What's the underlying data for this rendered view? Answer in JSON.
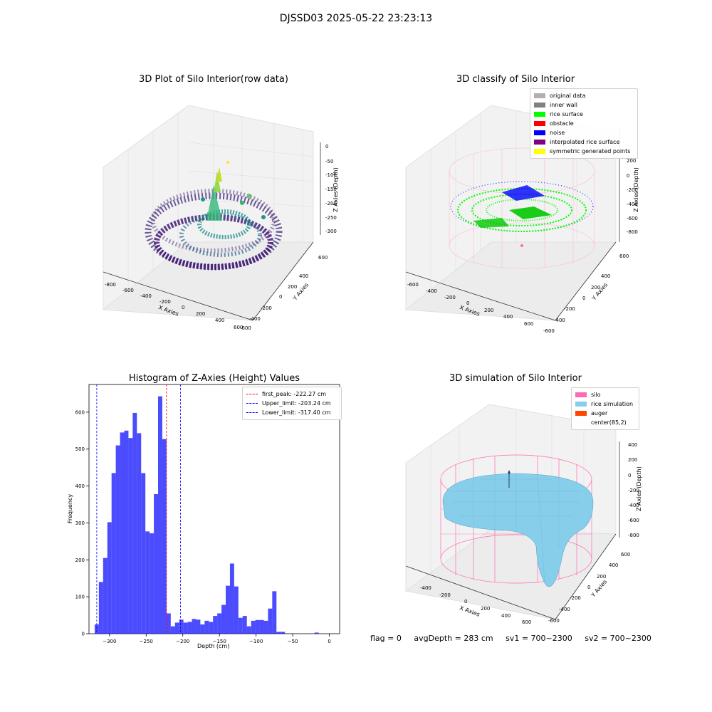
{
  "suptitle": "DJSSD03 2025-05-22 23:23:13",
  "colors": {
    "hist_bar": "#0000ff",
    "first_peak": "#ff0000",
    "limits": "#0000ff",
    "silo": "#ff69b4",
    "rice_simulation": "#87ceeb",
    "auger": "#ff4500",
    "original_data": "#b0b0b0",
    "inner_wall": "#808080",
    "rice_surface": "#00ff00",
    "obstacle": "#ff0000",
    "noise": "#0000ff",
    "interpolated_rice_surface": "#800080",
    "symmetric_generated_points": "#ffff00"
  },
  "chart_data": [
    {
      "type": "scatter",
      "title": "3D Plot of Silo Interior(row data)",
      "xlabel": "X Axies",
      "ylabel": "Y Axies",
      "zlabel": "Z Axies (Depth)",
      "x_ticks": [
        "-800",
        "-600",
        "-400",
        "-200",
        "0",
        "200",
        "400",
        "600"
      ],
      "y_ticks": [
        "600",
        "400",
        "200",
        "0",
        "-200",
        "-400",
        "-600"
      ],
      "z_ticks": [
        "0",
        "-50",
        "-100",
        "-150",
        "-200",
        "-250",
        "-300"
      ],
      "colormap": "viridis"
    },
    {
      "type": "scatter",
      "title": "3D classify of Silo Interior",
      "xlabel": "X Axies",
      "ylabel": "Y Axies",
      "zlabel": "Z Axies (Depth)",
      "x_ticks": [
        "-600",
        "-400",
        "-200",
        "0",
        "200",
        "400",
        "600"
      ],
      "y_ticks": [
        "600",
        "400",
        "200",
        "0",
        "-200",
        "-400",
        "-600"
      ],
      "z_ticks": [
        "200",
        "0",
        "-200",
        "-400",
        "-600",
        "-800"
      ],
      "legend": [
        {
          "label": "original data",
          "color": "#b0b0b0"
        },
        {
          "label": "inner wall",
          "color": "#808080"
        },
        {
          "label": "rice surface",
          "color": "#00ff00"
        },
        {
          "label": "obstacle",
          "color": "#ff0000"
        },
        {
          "label": "noise",
          "color": "#0000ff"
        },
        {
          "label": "interpolated rice surface",
          "color": "#800080"
        },
        {
          "label": "symmetric generated points",
          "color": "#ffff00"
        }
      ]
    },
    {
      "type": "bar",
      "title": "Histogram of Z-Axies (Height) Values",
      "xlabel": "Depth (cm)",
      "ylabel": "Frequency",
      "xlim": [
        -328,
        14
      ],
      "ylim": [
        0,
        675
      ],
      "x_ticks": [
        -300,
        -250,
        -200,
        -150,
        -100,
        -50,
        0
      ],
      "y_ticks": [
        0,
        100,
        200,
        300,
        400,
        500,
        600
      ],
      "bin_start": -320.3,
      "bin_width": 5.77,
      "values": [
        25,
        140,
        205,
        302,
        435,
        510,
        545,
        550,
        530,
        598,
        543,
        435,
        277,
        272,
        378,
        643,
        527,
        55,
        20,
        30,
        38,
        30,
        32,
        40,
        38,
        25,
        35,
        32,
        48,
        55,
        78,
        130,
        190,
        128,
        43,
        48,
        20,
        35,
        37,
        37,
        35,
        68,
        115,
        5,
        5,
        0,
        0,
        0,
        0,
        0,
        0,
        0,
        3
      ],
      "lines": [
        {
          "label": "first_peak: -222.27 cm",
          "x": -222.27,
          "color": "#ff0000"
        },
        {
          "label": "Upper_limit: -203.24 cm",
          "x": -203.24,
          "color": "#0000ff"
        },
        {
          "label": "Lower_limit: -317.40 cm",
          "x": -317.4,
          "color": "#0000ff"
        }
      ]
    },
    {
      "type": "area",
      "title": "3D simulation of Silo Interior",
      "xlabel": "X Axies",
      "ylabel": "Y Axies",
      "zlabel": "Z Axies (Depth)",
      "x_ticks": [
        "-400",
        "-200",
        "0",
        "200",
        "400",
        "600"
      ],
      "y_ticks": [
        "600",
        "400",
        "200",
        "0",
        "-200",
        "-400",
        "-600"
      ],
      "z_ticks": [
        "400",
        "200",
        "0",
        "-200",
        "-400",
        "-600",
        "-800"
      ],
      "legend": [
        {
          "label": "silo",
          "color": "#ff69b4"
        },
        {
          "label": "rice simulation",
          "color": "#87ceeb"
        },
        {
          "label": "auger",
          "color": "#ff4500"
        },
        {
          "label": "center(85,2)",
          "color": ""
        }
      ]
    }
  ],
  "footer": {
    "flag": "flag = 0",
    "avg_depth": "avgDepth = 283 cm",
    "sv1": "sv1 = 700~2300",
    "sv2": "sv2 = 700~2300"
  }
}
